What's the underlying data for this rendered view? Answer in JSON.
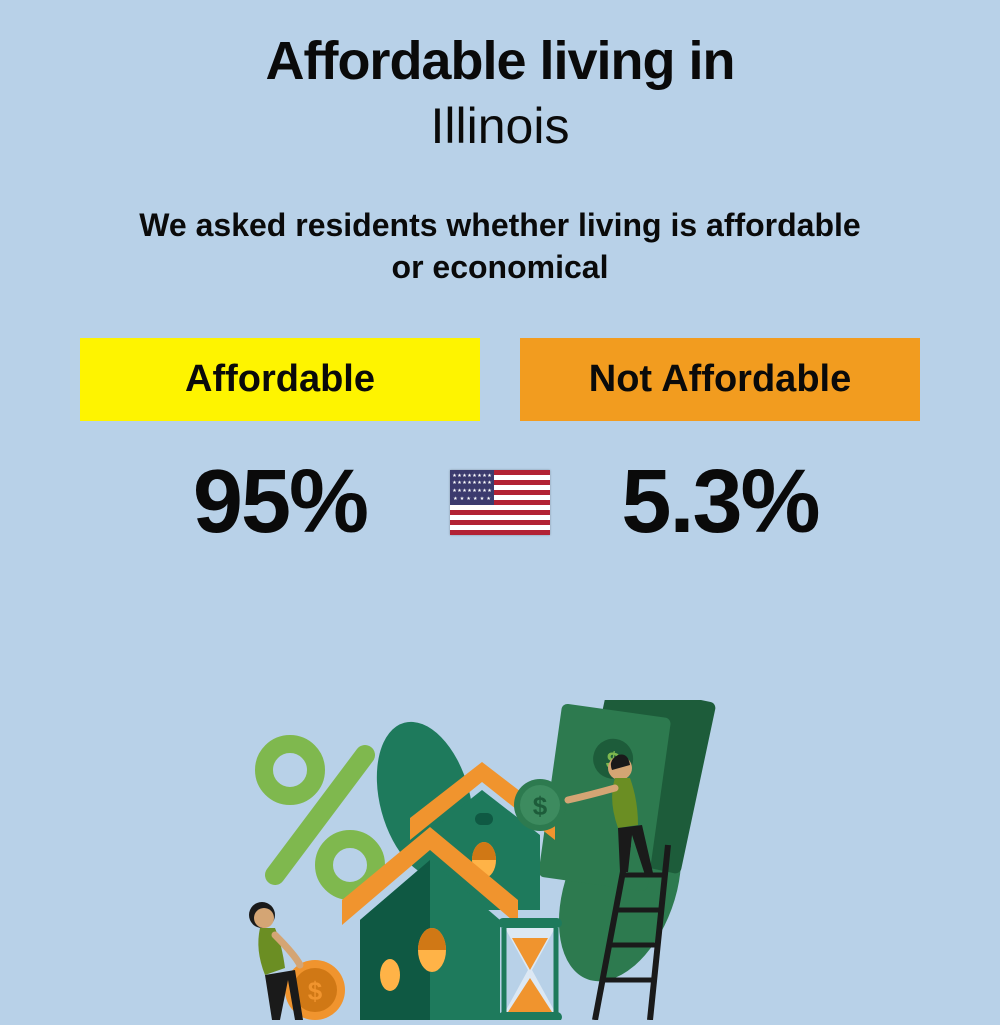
{
  "background_color": "#b8d1e8",
  "text_color": "#0a0a0a",
  "title": {
    "line1": "Affordable living in",
    "line2": "Illinois",
    "line1_fontsize": 54,
    "line2_fontsize": 50,
    "line1_weight": 900,
    "line2_weight": 400
  },
  "subtitle": {
    "text": "We asked residents whether living is affordable or economical",
    "fontsize": 32,
    "weight": 700
  },
  "options": {
    "affordable": {
      "label": "Affordable",
      "value": "95%",
      "box_bg": "#fef400",
      "box_text_color": "#0a0a0a",
      "label_fontsize": 38,
      "value_fontsize": 90
    },
    "not_affordable": {
      "label": "Not Affordable",
      "value": "5.3%",
      "box_bg": "#f29c1f",
      "box_text_color": "#0a0a0a",
      "label_fontsize": 38,
      "value_fontsize": 90
    }
  },
  "flag": {
    "country": "USA",
    "stripe_red": "#b22234",
    "stripe_white": "#ffffff",
    "canton_blue": "#3c3b6e"
  },
  "illustration": {
    "colors": {
      "house_wall": "#1e7a5c",
      "house_wall_dark": "#0f5943",
      "roof": "#f0942e",
      "window": "#ffb347",
      "money_green": "#2d7a4f",
      "money_green_dark": "#1d5c3a",
      "leaf_green": "#3d8b5f",
      "leaf_light": "#7fb84e",
      "percent_green": "#7fb84e",
      "hourglass_frame": "#1e7a5c",
      "hourglass_sand": "#f0942e",
      "coin": "#f0942e",
      "coin_dark": "#d07815",
      "person1_top": "#6b8e23",
      "person1_bottom": "#1a1a1a",
      "person2_top": "#6b8e23",
      "person2_bottom": "#1a1a1a",
      "skin": "#d4a574",
      "ladder": "#1a1a1a"
    }
  }
}
